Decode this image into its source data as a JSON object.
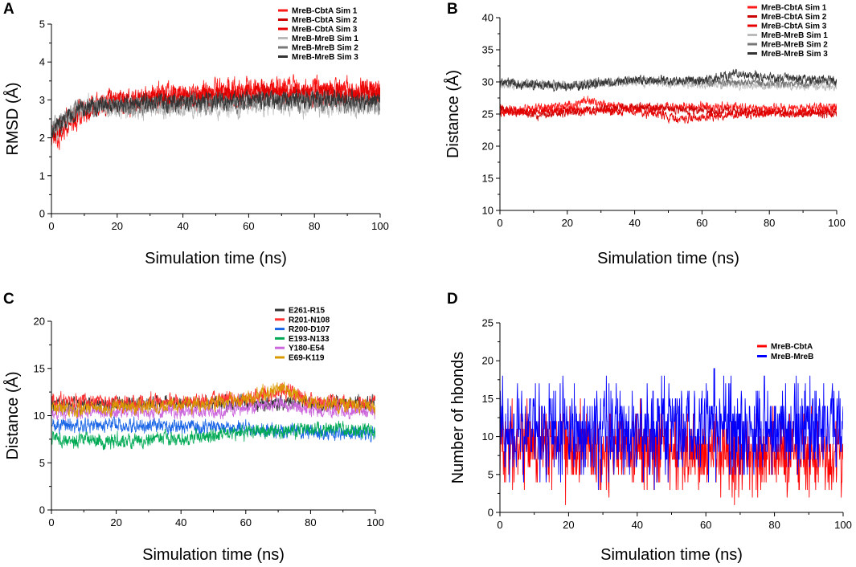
{
  "chart_data": [
    {
      "panel": "A",
      "type": "line",
      "xlabel": "Simulation time (ns)",
      "ylabel": "RMSD (Å)",
      "xlim": [
        0,
        100
      ],
      "ylim": [
        0,
        5
      ],
      "xticks": [
        0,
        20,
        40,
        60,
        80,
        100
      ],
      "yticks": [
        0,
        1,
        2,
        3,
        4,
        5
      ],
      "legend_position": "top-right",
      "series": [
        {
          "name": "MreB-CbtA Sim 1",
          "color": "#ff1a1a",
          "mean": [
            [
              0,
              2.0
            ],
            [
              5,
              2.3
            ],
            [
              10,
              2.7
            ],
            [
              15,
              2.95
            ],
            [
              20,
              3.0
            ],
            [
              30,
              3.05
            ],
            [
              40,
              3.1
            ],
            [
              50,
              3.2
            ],
            [
              60,
              3.3
            ],
            [
              70,
              3.35
            ],
            [
              80,
              3.3
            ],
            [
              90,
              3.25
            ],
            [
              100,
              3.3
            ]
          ],
          "noise": 0.22
        },
        {
          "name": "MreB-CbtA Sim 2",
          "color": "#cc0000",
          "mean": [
            [
              0,
              2.1
            ],
            [
              5,
              2.5
            ],
            [
              10,
              2.75
            ],
            [
              20,
              2.9
            ],
            [
              40,
              3.0
            ],
            [
              60,
              3.1
            ],
            [
              80,
              3.1
            ],
            [
              100,
              3.1
            ]
          ],
          "noise": 0.18
        },
        {
          "name": "MreB-CbtA Sim 3",
          "color": "#e60000",
          "mean": [
            [
              0,
              2.0
            ],
            [
              5,
              2.4
            ],
            [
              10,
              2.8
            ],
            [
              20,
              3.0
            ],
            [
              40,
              3.05
            ],
            [
              60,
              3.2
            ],
            [
              80,
              3.15
            ],
            [
              100,
              3.2
            ]
          ],
          "noise": 0.2
        },
        {
          "name": "MreB-MreB Sim 1",
          "color": "#bbbbbb",
          "mean": [
            [
              0,
              2.1
            ],
            [
              5,
              2.6
            ],
            [
              10,
              2.85
            ],
            [
              20,
              2.75
            ],
            [
              40,
              2.8
            ],
            [
              60,
              2.85
            ],
            [
              80,
              2.9
            ],
            [
              100,
              2.85
            ]
          ],
          "noise": 0.2
        },
        {
          "name": "MreB-MreB Sim 2",
          "color": "#777777",
          "mean": [
            [
              0,
              2.2
            ],
            [
              5,
              2.6
            ],
            [
              10,
              2.8
            ],
            [
              20,
              2.85
            ],
            [
              40,
              2.9
            ],
            [
              60,
              2.95
            ],
            [
              80,
              2.95
            ],
            [
              100,
              2.9
            ]
          ],
          "noise": 0.18
        },
        {
          "name": "MreB-MreB Sim 3",
          "color": "#333333",
          "mean": [
            [
              0,
              2.2
            ],
            [
              5,
              2.55
            ],
            [
              10,
              2.8
            ],
            [
              20,
              2.9
            ],
            [
              40,
              2.95
            ],
            [
              60,
              3.0
            ],
            [
              80,
              3.0
            ],
            [
              100,
              3.0
            ]
          ],
          "noise": 0.16
        }
      ]
    },
    {
      "panel": "B",
      "type": "line",
      "xlabel": "Simulation time (ns)",
      "ylabel": "Distance (Å)",
      "xlim": [
        0,
        100
      ],
      "ylim": [
        10,
        40
      ],
      "xticks": [
        0,
        20,
        40,
        60,
        80,
        100
      ],
      "yticks": [
        10,
        15,
        20,
        25,
        30,
        35,
        40
      ],
      "legend_position": "top-right",
      "series": [
        {
          "name": "MreB-CbtA Sim 1",
          "color": "#ff1a1a",
          "mean": [
            [
              0,
              25.5
            ],
            [
              20,
              26.2
            ],
            [
              25,
              27.0
            ],
            [
              40,
              25.8
            ],
            [
              60,
              26.2
            ],
            [
              80,
              25.8
            ],
            [
              100,
              26.0
            ]
          ],
          "noise": 0.5
        },
        {
          "name": "MreB-CbtA Sim 2",
          "color": "#cc0000",
          "mean": [
            [
              0,
              26.0
            ],
            [
              10,
              24.8
            ],
            [
              20,
              25.3
            ],
            [
              40,
              26.0
            ],
            [
              60,
              25.6
            ],
            [
              80,
              25.2
            ],
            [
              100,
              25.0
            ]
          ],
          "noise": 0.5
        },
        {
          "name": "MreB-CbtA Sim 3",
          "color": "#e60000",
          "mean": [
            [
              0,
              25.2
            ],
            [
              20,
              25.6
            ],
            [
              40,
              25.4
            ],
            [
              55,
              24.2
            ],
            [
              70,
              25.0
            ],
            [
              100,
              25.4
            ]
          ],
          "noise": 0.5
        },
        {
          "name": "MreB-MreB Sim 1",
          "color": "#bbbbbb",
          "mean": [
            [
              0,
              29.4
            ],
            [
              20,
              29.6
            ],
            [
              40,
              30.0
            ],
            [
              60,
              29.6
            ],
            [
              80,
              29.3
            ],
            [
              100,
              29.3
            ]
          ],
          "noise": 0.45
        },
        {
          "name": "MreB-MreB Sim 2",
          "color": "#777777",
          "mean": [
            [
              0,
              30.0
            ],
            [
              20,
              29.5
            ],
            [
              40,
              30.3
            ],
            [
              60,
              30.0
            ],
            [
              80,
              29.8
            ],
            [
              100,
              29.8
            ]
          ],
          "noise": 0.45
        },
        {
          "name": "MreB-MreB Sim 3",
          "color": "#333333",
          "mean": [
            [
              0,
              29.8
            ],
            [
              20,
              29.2
            ],
            [
              40,
              30.3
            ],
            [
              60,
              30.2
            ],
            [
              70,
              31.2
            ],
            [
              85,
              30.5
            ],
            [
              100,
              30.3
            ]
          ],
          "noise": 0.5
        }
      ]
    },
    {
      "panel": "C",
      "type": "line",
      "xlabel": "Simulation time (ns)",
      "ylabel": "Distance (Å)",
      "xlim": [
        0,
        100
      ],
      "ylim": [
        0,
        20
      ],
      "xticks": [
        0,
        20,
        40,
        60,
        80,
        100
      ],
      "yticks": [
        0,
        5,
        10,
        15,
        20
      ],
      "legend_position": "top-right",
      "series": [
        {
          "name": "E261-R15",
          "color": "#333333",
          "mean": [
            [
              0,
              11.2
            ],
            [
              50,
              11.3
            ],
            [
              100,
              11.3
            ]
          ],
          "noise": 0.55
        },
        {
          "name": "R201-N108",
          "color": "#ff3333",
          "mean": [
            [
              0,
              11.3
            ],
            [
              40,
              11.5
            ],
            [
              60,
              11.8
            ],
            [
              72,
              12.8
            ],
            [
              80,
              11.5
            ],
            [
              100,
              11.2
            ]
          ],
          "noise": 0.6
        },
        {
          "name": "R200-D107",
          "color": "#1a66e6",
          "mean": [
            [
              0,
              9.0
            ],
            [
              30,
              8.9
            ],
            [
              60,
              8.6
            ],
            [
              100,
              8.0
            ]
          ],
          "noise": 0.55
        },
        {
          "name": "E193-N133",
          "color": "#00aa55",
          "mean": [
            [
              0,
              7.5
            ],
            [
              20,
              7.3
            ],
            [
              40,
              7.6
            ],
            [
              60,
              8.2
            ],
            [
              80,
              8.6
            ],
            [
              100,
              8.5
            ]
          ],
          "noise": 0.55
        },
        {
          "name": "Y180-E54",
          "color": "#cc66dd",
          "mean": [
            [
              0,
              10.3
            ],
            [
              50,
              10.5
            ],
            [
              70,
              11.2
            ],
            [
              85,
              10.6
            ],
            [
              100,
              10.4
            ]
          ],
          "noise": 0.5
        },
        {
          "name": "E69-K119",
          "color": "#d99a00",
          "mean": [
            [
              0,
              10.7
            ],
            [
              40,
              11.0
            ],
            [
              60,
              11.6
            ],
            [
              72,
              13.0
            ],
            [
              80,
              11.3
            ],
            [
              100,
              11.0
            ]
          ],
          "noise": 0.55
        }
      ]
    },
    {
      "panel": "D",
      "type": "line",
      "xlabel": "Simulation time (ns)",
      "ylabel": "Number of  hbonds",
      "xlim": [
        0,
        100
      ],
      "ylim": [
        0,
        25
      ],
      "xticks": [
        0,
        20,
        40,
        60,
        80,
        100
      ],
      "yticks": [
        0,
        5,
        10,
        15,
        20,
        25
      ],
      "legend_position": "top-right",
      "series": [
        {
          "name": "MreB-CbtA",
          "color": "#ff0000",
          "mean": [
            [
              0,
              8.5
            ],
            [
              20,
              8.5
            ],
            [
              45,
              8.5
            ],
            [
              60,
              8.0
            ],
            [
              80,
              7.5
            ],
            [
              100,
              7.5
            ]
          ],
          "noise": 2.3
        },
        {
          "name": "MreB-MreB",
          "color": "#0000ff",
          "mean": [
            [
              0,
              11.5
            ],
            [
              20,
              10.0
            ],
            [
              40,
              10.5
            ],
            [
              60,
              11.5
            ],
            [
              80,
              11.0
            ],
            [
              100,
              11.5
            ]
          ],
          "noise": 2.8
        }
      ]
    }
  ]
}
